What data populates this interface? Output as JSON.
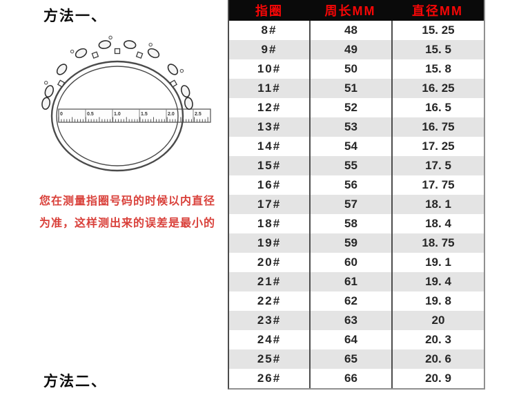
{
  "left_panel": {
    "method1_label": "方法一、",
    "method2_label": "方法二、",
    "note_line1": "您在测量指圈号码的时候以内直径",
    "note_line2": "为准，这样测出来的误差是最小的",
    "note_color": "#d9403a",
    "illustration": {
      "name": "ring-with-ruler-sketch",
      "ruler_labels": [
        "0",
        "0.5",
        "1.0",
        "1.5",
        "2.0",
        "2.5"
      ]
    }
  },
  "table": {
    "headers": [
      "指圈",
      "周长MM",
      "直径MM"
    ],
    "header_bg": "#0a0a0a",
    "header_text_color": "#f60606",
    "stripe_color": "#e4e4e4",
    "divider_color": "#4c4c4c",
    "rows": [
      [
        "8#",
        "48",
        "15. 25"
      ],
      [
        "9#",
        "49",
        "15. 5"
      ],
      [
        "10#",
        "50",
        "15. 8"
      ],
      [
        "11#",
        "51",
        "16. 25"
      ],
      [
        "12#",
        "52",
        "16. 5"
      ],
      [
        "13#",
        "53",
        "16. 75"
      ],
      [
        "14#",
        "54",
        "17. 25"
      ],
      [
        "15#",
        "55",
        "17. 5"
      ],
      [
        "16#",
        "56",
        "17. 75"
      ],
      [
        "17#",
        "57",
        "18. 1"
      ],
      [
        "18#",
        "58",
        "18. 4"
      ],
      [
        "19#",
        "59",
        "18. 75"
      ],
      [
        "20#",
        "60",
        "19. 1"
      ],
      [
        "21#",
        "61",
        "19. 4"
      ],
      [
        "22#",
        "62",
        "19. 8"
      ],
      [
        "23#",
        "63",
        "20"
      ],
      [
        "24#",
        "64",
        "20. 3"
      ],
      [
        "25#",
        "65",
        "20. 6"
      ],
      [
        "26#",
        "66",
        "20. 9"
      ]
    ]
  },
  "chart_data": {
    "type": "table",
    "columns": [
      "指圈",
      "周长MM",
      "直径MM"
    ],
    "rows": [
      [
        "8#",
        48,
        15.25
      ],
      [
        "9#",
        49,
        15.5
      ],
      [
        "10#",
        50,
        15.8
      ],
      [
        "11#",
        51,
        16.25
      ],
      [
        "12#",
        52,
        16.5
      ],
      [
        "13#",
        53,
        16.75
      ],
      [
        "14#",
        54,
        17.25
      ],
      [
        "15#",
        55,
        17.5
      ],
      [
        "16#",
        56,
        17.75
      ],
      [
        "17#",
        57,
        18.1
      ],
      [
        "18#",
        58,
        18.4
      ],
      [
        "19#",
        59,
        18.75
      ],
      [
        "20#",
        60,
        19.1
      ],
      [
        "21#",
        61,
        19.4
      ],
      [
        "22#",
        62,
        19.8
      ],
      [
        "23#",
        63,
        20
      ],
      [
        "24#",
        64,
        20.3
      ],
      [
        "25#",
        65,
        20.6
      ],
      [
        "26#",
        66,
        20.9
      ]
    ]
  }
}
